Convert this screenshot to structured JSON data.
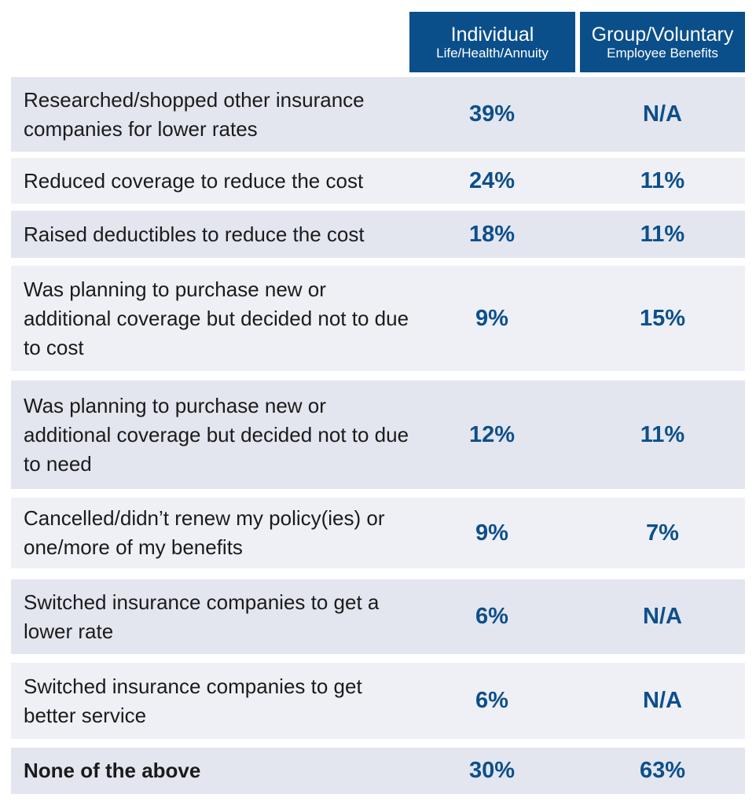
{
  "chart_data": {
    "type": "table",
    "columns": [
      {
        "title": "Individual",
        "subtitle": "Life/Health/Annuity"
      },
      {
        "title": "Group/Voluntary",
        "subtitle": "Employee Benefits"
      }
    ],
    "rows": [
      {
        "label": "Researched/shopped other insurance companies for lower rates",
        "individual": "39%",
        "group": "N/A"
      },
      {
        "label": "Reduced coverage to reduce the cost",
        "individual": "24%",
        "group": "11%"
      },
      {
        "label": "Raised deductibles to reduce the cost",
        "individual": "18%",
        "group": "11%"
      },
      {
        "label": "Was planning to purchase new or additional coverage but decided not to due to cost",
        "individual": "9%",
        "group": "15%"
      },
      {
        "label": "Was planning to purchase new or additional coverage but decided not to due to need",
        "individual": "12%",
        "group": "11%"
      },
      {
        "label": "Cancelled/didn’t renew my policy(ies) or one/more of my benefits",
        "individual": "9%",
        "group": "7%"
      },
      {
        "label": "Switched insurance companies to get a lower rate",
        "individual": "6%",
        "group": "N/A"
      },
      {
        "label": "Switched insurance companies to get better service",
        "individual": "6%",
        "group": "N/A"
      },
      {
        "label": "None of the above",
        "individual": "30%",
        "group": "63%"
      }
    ]
  },
  "colors": {
    "header": "#0a4f8a",
    "value_text": "#0d4f8b",
    "row_dark": "#e3e6ef",
    "row_light": "#eff0f5"
  }
}
